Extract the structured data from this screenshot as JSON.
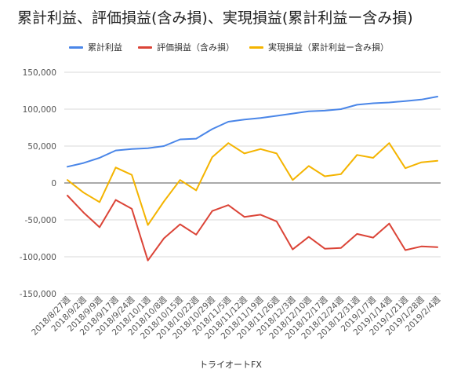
{
  "title": "累計利益、評価損益(含み損)、実現損益(累計利益ー含み損)",
  "legend": [
    {
      "label": "累計利益",
      "color": "#4a86e8"
    },
    {
      "label": "評価損益（含み損）",
      "color": "#db4437"
    },
    {
      "label": "実現損益（累計利益ー含み損）",
      "color": "#f4b400"
    }
  ],
  "chart_data": {
    "type": "line",
    "title": "累計利益、評価損益(含み損)、実現損益(累計利益ー含み損)",
    "xlabel": "トライオートFX",
    "ylabel": "",
    "ylim": [
      -150000,
      150000
    ],
    "yticks": [
      -150000,
      -100000,
      -50000,
      0,
      50000,
      100000,
      150000
    ],
    "ytick_labels": [
      "-150,000",
      "-100,000",
      "-50,000",
      "0",
      "50,000",
      "100,000",
      "150,000"
    ],
    "grid": true,
    "legend_position": "top",
    "categories": [
      "2018/8/27週",
      "2018/9/2週",
      "2018/9/9週",
      "2018/9/17週",
      "2018/9/24週",
      "2018/10/1週",
      "2018/10/8週",
      "2018/10/15週",
      "2018/10/22週",
      "2018/10/29週",
      "2018/11/5週",
      "2018/11/12週",
      "2018/11/19週",
      "2018/11/26週",
      "2018/12/3週",
      "2018/12/10週",
      "2018/12/17週",
      "2018/12/24週",
      "2018/12/31週",
      "2019/1/7週",
      "2019/1/14週",
      "2019/1/21週",
      "2019/1/28週",
      "2019/2/4週"
    ],
    "series": [
      {
        "name": "累計利益",
        "color": "#4a86e8",
        "values": [
          22000,
          27000,
          34000,
          44000,
          46000,
          47000,
          50000,
          59000,
          60000,
          73000,
          83000,
          86000,
          88000,
          91000,
          94000,
          97000,
          98000,
          100000,
          106000,
          108000,
          109000,
          111000,
          113000,
          117000
        ]
      },
      {
        "name": "評価損益（含み損）",
        "color": "#db4437",
        "values": [
          -17000,
          -40000,
          -60000,
          -23000,
          -35000,
          -105000,
          -75000,
          -56000,
          -70000,
          -38000,
          -30000,
          -46000,
          -43000,
          -52000,
          -90000,
          -73000,
          -89000,
          -88000,
          -69000,
          -74000,
          -55000,
          -91000,
          -86000,
          -87000
        ]
      },
      {
        "name": "実現損益（累計利益ー含み損）",
        "color": "#f4b400",
        "values": [
          4000,
          -13000,
          -26000,
          21000,
          11000,
          -57000,
          -25000,
          4000,
          -10000,
          35000,
          54000,
          40000,
          46000,
          40000,
          4000,
          23000,
          9000,
          12000,
          38000,
          34000,
          54000,
          20000,
          28000,
          30000
        ]
      }
    ]
  }
}
